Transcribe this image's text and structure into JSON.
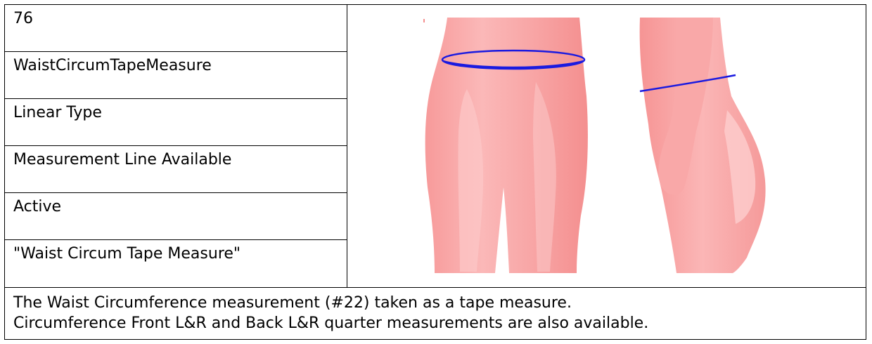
{
  "fields": {
    "id": "76",
    "name": "WaistCircumTapeMeasure",
    "type": "Linear Type",
    "line": "Measurement Line Available",
    "status": "Active",
    "label": "\"Waist Circum Tape Measure\""
  },
  "description": {
    "line1": "The Waist Circumference measurement (#22) taken as a tape measure.",
    "line2": "Circumference Front L&R and Back L&R quarter measurements are also available."
  },
  "colors": {
    "body": "#f8a4a4",
    "body_highlight": "#fcc6c6",
    "measure_line": "#1a1ae0"
  }
}
